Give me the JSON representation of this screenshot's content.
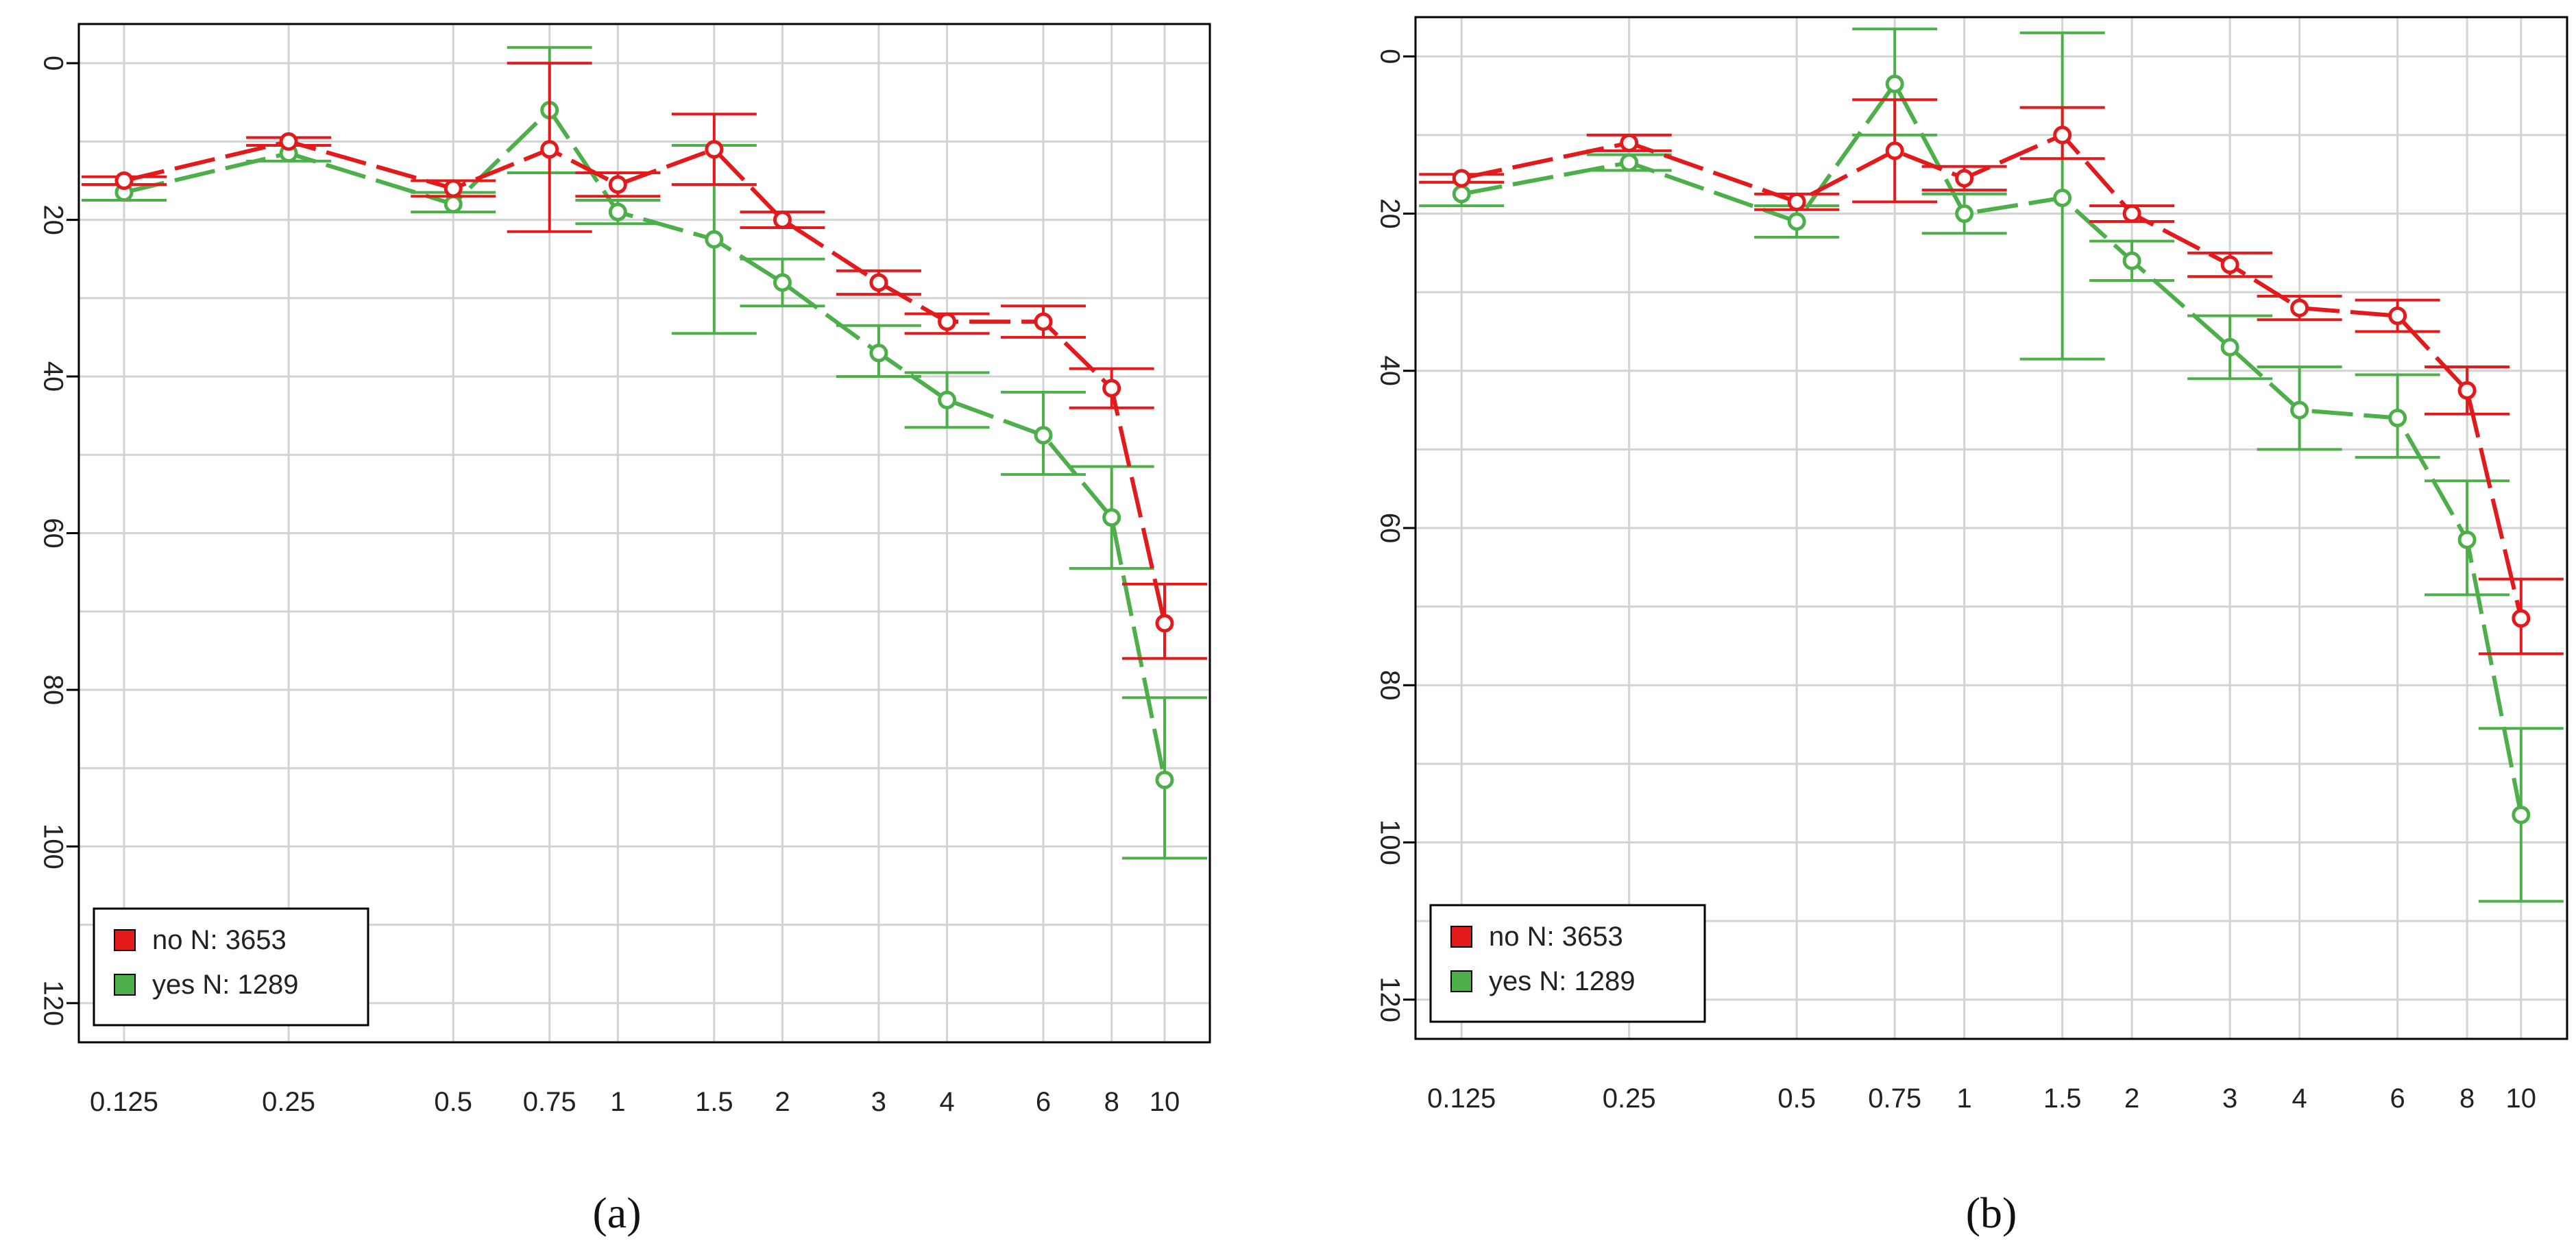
{
  "chart_data": [
    {
      "type": "line",
      "caption": "(a)",
      "categories": [
        "0.125",
        "0.25",
        "0.5",
        "0.75",
        "1",
        "1.5",
        "2",
        "3",
        "4",
        "6",
        "8",
        "10"
      ],
      "x": [
        0.125,
        0.25,
        0.5,
        0.75,
        1,
        1.5,
        2,
        3,
        4,
        6,
        8,
        10
      ],
      "x_scale": "log",
      "y_reversed": true,
      "ylim": [
        0,
        120
      ],
      "yticks": [
        0,
        20,
        40,
        60,
        80,
        100,
        120
      ],
      "grid": true,
      "legend_position": "bottom-left",
      "series": [
        {
          "name": "no N: 3653",
          "color": "#e31a1c",
          "values": [
            15,
            10,
            16,
            11,
            15.5,
            11,
            20,
            28,
            33,
            33,
            41.5,
            71.5
          ],
          "error_low": [
            14.5,
            9.5,
            15,
            0,
            14,
            6.5,
            19,
            26.5,
            32,
            31,
            39,
            66.5
          ],
          "error_high": [
            15.5,
            10.5,
            17,
            21.5,
            17,
            15.5,
            21,
            29.5,
            34.5,
            35,
            44,
            76
          ]
        },
        {
          "name": "yes N: 1289",
          "color": "#4daf4a",
          "values": [
            16.5,
            11.5,
            18,
            6,
            19,
            22.5,
            28,
            37,
            43,
            47.5,
            58,
            91.5
          ],
          "error_low": [
            15.5,
            10.5,
            16.5,
            -2,
            17.5,
            10.5,
            25,
            33.5,
            39.5,
            42,
            51.5,
            81
          ],
          "error_high": [
            17.5,
            12.5,
            19,
            14,
            20.5,
            34.5,
            31,
            40,
            46.5,
            52.5,
            64.5,
            101.5
          ]
        }
      ]
    },
    {
      "type": "line",
      "caption": "(b)",
      "categories": [
        "0.125",
        "0.25",
        "0.5",
        "0.75",
        "1",
        "1.5",
        "2",
        "3",
        "4",
        "6",
        "8",
        "10"
      ],
      "x": [
        0.125,
        0.25,
        0.5,
        0.75,
        1,
        1.5,
        2,
        3,
        4,
        6,
        8,
        10
      ],
      "x_scale": "log",
      "y_reversed": true,
      "ylim": [
        0,
        120
      ],
      "yticks": [
        0,
        20,
        40,
        60,
        80,
        100,
        120
      ],
      "grid": true,
      "legend_position": "bottom-left",
      "series": [
        {
          "name": "no N: 3653",
          "color": "#e31a1c",
          "values": [
            15.5,
            11,
            18.5,
            12,
            15.5,
            10,
            20,
            26.5,
            32,
            33,
            42.5,
            71.5
          ],
          "error_low": [
            15,
            10,
            17.5,
            5.5,
            14,
            6.5,
            19,
            25,
            30.5,
            31,
            39.5,
            66.5
          ],
          "error_high": [
            16,
            12,
            19.5,
            18.5,
            17,
            13,
            21,
            28,
            33.5,
            35,
            45.5,
            76
          ]
        },
        {
          "name": "yes N: 1289",
          "color": "#4daf4a",
          "values": [
            17.5,
            13.5,
            21,
            3.5,
            20,
            18,
            26,
            37,
            45,
            46,
            61.5,
            96.5
          ],
          "error_low": [
            16,
            12.5,
            19,
            -3.5,
            17.5,
            -3,
            23.5,
            33,
            39.5,
            40.5,
            54,
            85.5
          ],
          "error_high": [
            19,
            14.5,
            23,
            10,
            22.5,
            38.5,
            28.5,
            41,
            50,
            51,
            68.5,
            107.5
          ]
        }
      ]
    }
  ]
}
